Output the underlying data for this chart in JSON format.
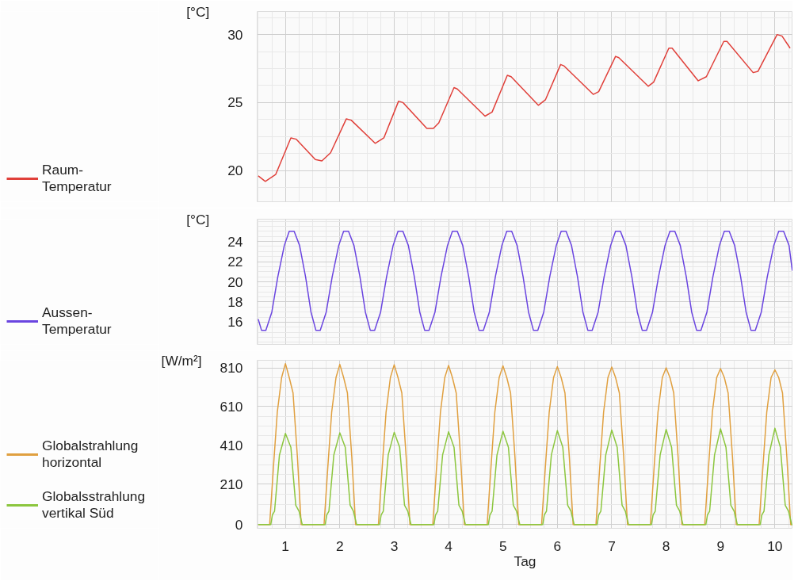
{
  "chart_data": [
    {
      "type": "line",
      "ylabel": "[°C]",
      "xlim": [
        0.48,
        10.33
      ],
      "xticks": [
        1,
        2,
        3,
        4,
        5,
        6,
        7,
        8,
        9,
        10
      ],
      "ylim": [
        17.7,
        31.7
      ],
      "yticks": [
        20,
        25,
        30
      ],
      "grid": true,
      "legend": "left",
      "tick_labels": "y",
      "series": [
        {
          "name": "Raum-\nTemperatur",
          "color": "#e0403a",
          "x": [
            0.5,
            0.63,
            0.82,
            1.1,
            1.2,
            1.55,
            1.67,
            1.83,
            2.12,
            2.21,
            2.65,
            2.81,
            3.08,
            3.16,
            3.6,
            3.72,
            3.82,
            4.1,
            4.16,
            4.67,
            4.8,
            5.08,
            5.15,
            5.65,
            5.78,
            6.06,
            6.12,
            6.66,
            6.76,
            7.07,
            7.13,
            7.67,
            7.77,
            8.05,
            8.11,
            8.59,
            8.74,
            9.06,
            9.12,
            9.6,
            9.69,
            10.04,
            10.13,
            10.28
          ],
          "values": [
            19.6,
            19.2,
            19.7,
            22.4,
            22.3,
            20.8,
            20.7,
            21.3,
            23.8,
            23.7,
            22.0,
            22.4,
            25.1,
            25.0,
            23.1,
            23.1,
            23.5,
            26.1,
            26.0,
            24.0,
            24.3,
            27.0,
            26.9,
            24.8,
            25.2,
            27.8,
            27.7,
            25.6,
            25.8,
            28.4,
            28.3,
            26.2,
            26.5,
            29.0,
            29.0,
            26.6,
            26.9,
            29.5,
            29.5,
            27.2,
            27.3,
            30.0,
            29.9,
            29.0
          ]
        }
      ]
    },
    {
      "type": "line",
      "ylabel": "[°C]",
      "xlim": [
        0.48,
        10.33
      ],
      "xticks": [
        1,
        2,
        3,
        4,
        5,
        6,
        7,
        8,
        9,
        10
      ],
      "ylim": [
        13.8,
        26.2
      ],
      "yticks": [
        16,
        18,
        20,
        22,
        24
      ],
      "grid": true,
      "legend": "left",
      "tick_labels": "y",
      "series": [
        {
          "name": "Aussen-\nTemperatur",
          "color": "#6a45e0",
          "x": [
            0.5,
            0.56,
            0.64,
            0.75,
            0.86,
            0.98,
            1.07,
            1.16,
            1.26,
            1.37,
            1.47,
            1.56,
            1.64,
            1.75,
            1.86,
            1.98,
            2.07,
            2.16,
            2.26,
            2.37,
            2.47,
            2.56,
            2.64,
            2.75,
            2.86,
            2.98,
            3.07,
            3.16,
            3.26,
            3.37,
            3.47,
            3.56,
            3.64,
            3.75,
            3.86,
            3.98,
            4.07,
            4.16,
            4.26,
            4.37,
            4.47,
            4.56,
            4.64,
            4.75,
            4.86,
            4.98,
            5.07,
            5.16,
            5.26,
            5.37,
            5.47,
            5.56,
            5.64,
            5.75,
            5.86,
            5.98,
            6.07,
            6.16,
            6.26,
            6.37,
            6.47,
            6.56,
            6.64,
            6.75,
            6.86,
            6.98,
            7.07,
            7.16,
            7.26,
            7.37,
            7.47,
            7.56,
            7.64,
            7.75,
            7.86,
            7.98,
            8.07,
            8.16,
            8.26,
            8.37,
            8.47,
            8.56,
            8.64,
            8.75,
            8.86,
            8.98,
            9.07,
            9.16,
            9.26,
            9.37,
            9.47,
            9.56,
            9.64,
            9.75,
            9.86,
            9.98,
            10.07,
            10.16,
            10.26,
            10.32
          ],
          "values": [
            16.3,
            15.2,
            15.2,
            17,
            20.5,
            23.6,
            25,
            25,
            23.6,
            20.5,
            17,
            15.2,
            15.2,
            17,
            20.5,
            23.6,
            25,
            25,
            23.6,
            20.5,
            17,
            15.2,
            15.2,
            17,
            20.5,
            23.6,
            25,
            25,
            23.6,
            20.5,
            17,
            15.2,
            15.2,
            17,
            20.5,
            23.6,
            25,
            25,
            23.6,
            20.5,
            17,
            15.2,
            15.2,
            17,
            20.5,
            23.6,
            25,
            25,
            23.6,
            20.5,
            17,
            15.2,
            15.2,
            17,
            20.5,
            23.6,
            25,
            25,
            23.6,
            20.5,
            17,
            15.2,
            15.2,
            17,
            20.5,
            23.6,
            25,
            25,
            23.6,
            20.5,
            17,
            15.2,
            15.2,
            17,
            20.5,
            23.6,
            25,
            25,
            23.6,
            20.5,
            17,
            15.2,
            15.2,
            17,
            20.5,
            23.6,
            25,
            25,
            23.6,
            20.5,
            17,
            15.2,
            15.2,
            17,
            20.5,
            23.6,
            25,
            25,
            23.6,
            21.1
          ]
        }
      ]
    },
    {
      "type": "line",
      "ylabel": "[W/m²]",
      "xlabel": "Tag",
      "xlim": [
        0.48,
        10.33
      ],
      "xticks": [
        1,
        2,
        3,
        4,
        5,
        6,
        7,
        8,
        9,
        10
      ],
      "ylim": [
        -19,
        849
      ],
      "yticks": [
        0,
        210,
        410,
        610,
        810
      ],
      "grid": true,
      "legend": "left",
      "series": [
        {
          "name": "Globalstrahlung\nhorizontal",
          "color": "#e0a040",
          "x": [
            0.5,
            0.71,
            0.78,
            0.85,
            0.93,
            1.0,
            1.07,
            1.14,
            1.22,
            1.29,
            1.71,
            1.78,
            1.85,
            1.93,
            2.0,
            2.07,
            2.14,
            2.22,
            2.29,
            2.71,
            2.78,
            2.85,
            2.93,
            3.0,
            3.07,
            3.14,
            3.22,
            3.29,
            3.71,
            3.78,
            3.85,
            3.93,
            4.0,
            4.07,
            4.14,
            4.22,
            4.29,
            4.71,
            4.78,
            4.85,
            4.93,
            5.0,
            5.07,
            5.14,
            5.22,
            5.29,
            5.71,
            5.78,
            5.85,
            5.93,
            6.0,
            6.07,
            6.14,
            6.22,
            6.29,
            6.71,
            6.78,
            6.85,
            6.93,
            7.0,
            7.07,
            7.14,
            7.22,
            7.29,
            7.71,
            7.78,
            7.85,
            7.93,
            8.0,
            8.07,
            8.14,
            8.22,
            8.29,
            8.71,
            8.78,
            8.85,
            8.93,
            9.0,
            9.07,
            9.14,
            9.22,
            9.29,
            9.71,
            9.78,
            9.85,
            9.93,
            10.0,
            10.07,
            10.14,
            10.22,
            10.29,
            10.32
          ],
          "values": [
            0,
            0,
            300,
            580,
            760,
            832,
            760,
            680,
            350,
            0,
            0,
            300,
            580,
            760,
            828,
            760,
            680,
            350,
            0,
            0,
            300,
            580,
            760,
            826,
            760,
            680,
            350,
            0,
            0,
            300,
            580,
            760,
            822,
            760,
            680,
            350,
            0,
            0,
            300,
            580,
            760,
            820,
            760,
            680,
            350,
            0,
            0,
            300,
            580,
            760,
            816,
            760,
            680,
            350,
            0,
            0,
            300,
            580,
            760,
            814,
            760,
            680,
            350,
            0,
            0,
            300,
            580,
            760,
            810,
            760,
            680,
            350,
            0,
            0,
            300,
            580,
            760,
            806,
            760,
            680,
            350,
            0,
            0,
            300,
            580,
            760,
            800,
            760,
            680,
            350,
            0,
            0
          ]
        },
        {
          "name": "Globalsstrahlung\nvertikal Süd",
          "color": "#8cc63f",
          "x": [
            0.5,
            0.73,
            0.76,
            0.8,
            0.89,
            1.0,
            1.1,
            1.19,
            1.25,
            1.31,
            1.73,
            1.76,
            1.8,
            1.89,
            2.0,
            2.1,
            2.19,
            2.25,
            2.31,
            2.73,
            2.76,
            2.8,
            2.89,
            3.0,
            3.1,
            3.19,
            3.25,
            3.31,
            3.73,
            3.76,
            3.8,
            3.89,
            4.0,
            4.1,
            4.19,
            4.25,
            4.31,
            4.73,
            4.76,
            4.8,
            4.89,
            5.0,
            5.1,
            5.19,
            5.25,
            5.31,
            5.73,
            5.76,
            5.8,
            5.89,
            6.0,
            6.1,
            6.19,
            6.25,
            6.31,
            6.73,
            6.76,
            6.8,
            6.89,
            7.0,
            7.1,
            7.19,
            7.25,
            7.31,
            7.73,
            7.76,
            7.8,
            7.89,
            8.0,
            8.1,
            8.19,
            8.25,
            8.31,
            8.73,
            8.76,
            8.8,
            8.89,
            9.0,
            9.1,
            9.19,
            9.25,
            9.31,
            9.73,
            9.76,
            9.8,
            9.89,
            10.0,
            10.1,
            10.19,
            10.25,
            10.31,
            10.32
          ],
          "values": [
            0,
            0,
            50,
            70,
            360,
            471,
            400,
            100,
            70,
            0,
            0,
            50,
            70,
            360,
            474,
            400,
            100,
            70,
            0,
            0,
            50,
            70,
            360,
            477,
            400,
            100,
            70,
            0,
            0,
            50,
            70,
            360,
            480,
            400,
            100,
            70,
            0,
            0,
            50,
            70,
            360,
            483,
            400,
            100,
            70,
            0,
            0,
            50,
            70,
            360,
            486,
            400,
            100,
            70,
            0,
            0,
            50,
            70,
            360,
            489,
            400,
            100,
            70,
            0,
            0,
            50,
            70,
            360,
            492,
            400,
            100,
            70,
            0,
            0,
            50,
            70,
            360,
            495,
            400,
            100,
            70,
            0,
            0,
            50,
            70,
            360,
            498,
            400,
            100,
            70,
            0,
            0
          ]
        }
      ]
    }
  ]
}
